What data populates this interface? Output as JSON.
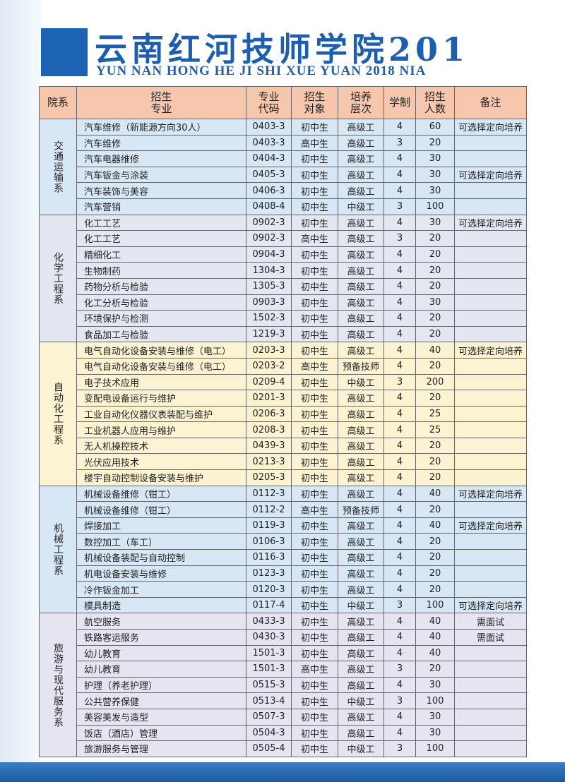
{
  "header": {
    "title": "云南红河技师学院201",
    "subtitle": "YUN NAN HONG HE JI SHI XUE YUAN 2018 NIA"
  },
  "table": {
    "columns": [
      "院系",
      "招生专业",
      "专业代码",
      "招生对象",
      "培养层次",
      "学制",
      "招生人数",
      "备注"
    ],
    "departments": [
      {
        "name": "交通运输系",
        "rows": [
          [
            "汽车维修（新能源方向30人）",
            "0403-3",
            "初中生",
            "高级工",
            4,
            60,
            "可选择定向培养"
          ],
          [
            "汽车维修",
            "0403-3",
            "高中生",
            "高级工",
            3,
            20
          ],
          [
            "汽车电器维修",
            "0404-3",
            "初中生",
            "高级工",
            4,
            30
          ],
          [
            "汽车钣金与涂装",
            "0405-3",
            "初中生",
            "高级工",
            4,
            30,
            "可选择定向培养"
          ],
          [
            "汽车装饰与美容",
            "0406-3",
            "初中生",
            "高级工",
            4,
            30
          ],
          [
            "汽车营销",
            "0408-4",
            "初中生",
            "中级工",
            3,
            100
          ]
        ]
      },
      {
        "name": "化学工程系",
        "rows": [
          [
            "化工工艺",
            "0902-3",
            "初中生",
            "高级工",
            4,
            30,
            "可选择定向培养"
          ],
          [
            "化工工艺",
            "0902-3",
            "高中生",
            "高级工",
            3,
            20
          ],
          [
            "精细化工",
            "0904-3",
            "初中生",
            "高级工",
            4,
            20
          ],
          [
            "生物制药",
            "1304-3",
            "初中生",
            "高级工",
            4,
            20
          ],
          [
            "药物分析与检验",
            "1305-3",
            "初中生",
            "高级工",
            4,
            20
          ],
          [
            "化工分析与检验",
            "0903-3",
            "初中生",
            "高级工",
            4,
            30
          ],
          [
            "环境保护与检测",
            "1502-3",
            "初中生",
            "高级工",
            4,
            20
          ],
          [
            "食品加工与检验",
            "1219-3",
            "初中生",
            "高级工",
            4,
            20
          ]
        ]
      },
      {
        "name": "自动化工程系",
        "rows": [
          [
            "电气自动化设备安装与维修（电工）",
            "0203-3",
            "初中生",
            "高级工",
            4,
            40,
            "可选择定向培养"
          ],
          [
            "电气自动化设备安装与维修（电工）",
            "0203-2",
            "高中生",
            "预备技师",
            4,
            20
          ],
          [
            "电子技术应用",
            "0209-4",
            "初中生",
            "中级工",
            3,
            200
          ],
          [
            "变配电设备运行与维护",
            "0201-3",
            "初中生",
            "高级工",
            4,
            20
          ],
          [
            "工业自动化仪器仪表装配与维护",
            "0206-3",
            "初中生",
            "高级工",
            4,
            25
          ],
          [
            "工业机器人应用与维护",
            "0208-3",
            "初中生",
            "高级工",
            4,
            25
          ],
          [
            "无人机操控技术",
            "0439-3",
            "初中生",
            "高级工",
            4,
            20
          ],
          [
            "光伏应用技术",
            "0213-3",
            "初中生",
            "高级工",
            4,
            20
          ],
          [
            "楼宇自动控制设备安装与维护",
            "0205-3",
            "初中生",
            "高级工",
            4,
            20
          ]
        ]
      },
      {
        "name": "机械工程系",
        "rows": [
          [
            "机械设备维修（钳工）",
            "0112-3",
            "初中生",
            "高级工",
            4,
            40,
            "可选择定向培养"
          ],
          [
            "机械设备维修（钳工）",
            "0112-2",
            "高中生",
            "预备技师",
            4,
            20
          ],
          [
            "焊接加工",
            "0119-3",
            "初中生",
            "高级工",
            4,
            40,
            "可选择定向培养"
          ],
          [
            "数控加工（车工）",
            "0106-3",
            "初中生",
            "高级工",
            4,
            20
          ],
          [
            "机械设备装配与自动控制",
            "0116-3",
            "初中生",
            "高级工",
            4,
            20
          ],
          [
            "机电设备安装与维修",
            "0123-3",
            "初中生",
            "高级工",
            4,
            20
          ],
          [
            "冷作钣金加工",
            "0120-3",
            "初中生",
            "高级工",
            4,
            20
          ],
          [
            "模具制造",
            "0117-4",
            "初中生",
            "中级工",
            3,
            100,
            "可选择定向培养"
          ]
        ]
      },
      {
        "name": "旅游与现代服务系",
        "rows": [
          [
            "航空服务",
            "0433-3",
            "初中生",
            "高级工",
            4,
            40,
            "需面试"
          ],
          [
            "铁路客运服务",
            "0430-3",
            "初中生",
            "高级工",
            4,
            40,
            "需面试"
          ],
          [
            "幼儿教育",
            "1501-3",
            "初中生",
            "高级工",
            4,
            40
          ],
          [
            "幼儿教育",
            "1501-3",
            "高中生",
            "高级工",
            3,
            20
          ],
          [
            "护理（养老护理）",
            "0515-3",
            "初中生",
            "高级工",
            4,
            30
          ],
          [
            "公共营养保健",
            "0513-4",
            "初中生",
            "中级工",
            3,
            100
          ],
          [
            "美容美发与造型",
            "0507-3",
            "初中生",
            "高级工",
            4,
            30
          ],
          [
            "饭店（酒店）管理",
            "0504-3",
            "初中生",
            "高级工",
            4,
            30
          ],
          [
            "旅游服务与管理",
            "0505-4",
            "初中生",
            "中级工",
            3,
            100
          ]
        ]
      }
    ]
  }
}
